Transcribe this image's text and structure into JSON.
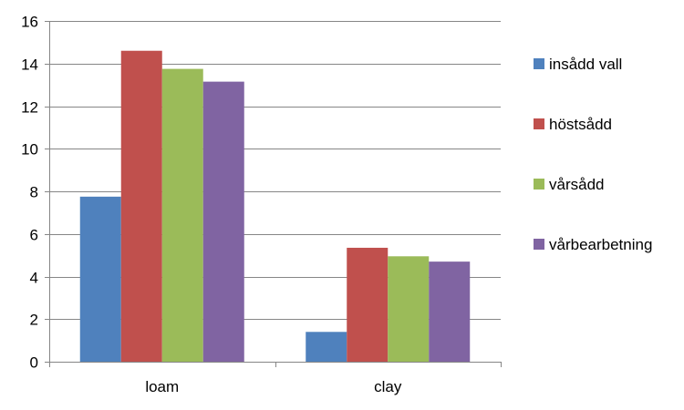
{
  "chart_data": {
    "type": "bar",
    "categories": [
      "loam",
      "clay"
    ],
    "series": [
      {
        "name": "insådd vall",
        "values": [
          7.75,
          1.4
        ],
        "color": "#4F81BD"
      },
      {
        "name": "höstsådd",
        "values": [
          14.6,
          5.35
        ],
        "color": "#C0504D"
      },
      {
        "name": "vårsådd",
        "values": [
          13.75,
          4.95
        ],
        "color": "#9BBB59"
      },
      {
        "name": "vårbearbetning",
        "values": [
          13.15,
          4.7
        ],
        "color": "#8064A2"
      }
    ],
    "ylim": [
      0,
      16
    ],
    "yticks": [
      "0",
      "2",
      "4",
      "6",
      "8",
      "10",
      "12",
      "14",
      "16"
    ],
    "grid": true,
    "legend_position": "right",
    "gridline_color": "#868686"
  }
}
